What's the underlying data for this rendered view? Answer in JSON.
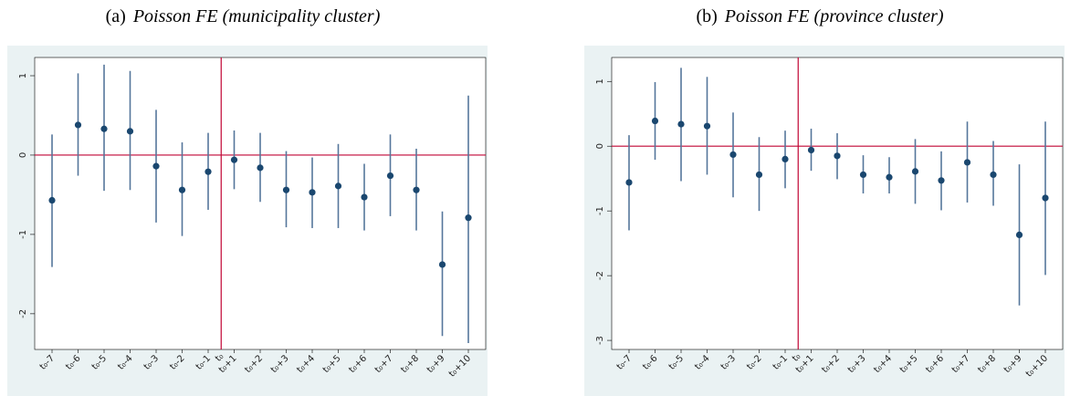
{
  "chart_data": [
    {
      "type": "errorbar",
      "label": "(a)",
      "title": "Poisson FE (municipality cluster)",
      "categories": [
        "t₀-7",
        "t₀-6",
        "t₀-5",
        "t₀-4",
        "t₀-3",
        "t₀-2",
        "t₀-1",
        "t₀+1",
        "t₀+2",
        "t₀+3",
        "t₀+4",
        "t₀+5",
        "t₀+6",
        "t₀+7",
        "t₀+8",
        "t₀+9",
        "t₀+10"
      ],
      "values": [
        -0.57,
        0.38,
        0.33,
        0.3,
        -0.14,
        -0.44,
        -0.21,
        -0.06,
        -0.16,
        -0.44,
        -0.47,
        -0.39,
        -0.53,
        -0.26,
        -0.44,
        -1.38,
        -0.79
      ],
      "lower": [
        -1.41,
        -0.26,
        -0.45,
        -0.44,
        -0.85,
        -1.02,
        -0.69,
        -0.43,
        -0.59,
        -0.91,
        -0.92,
        -0.92,
        -0.95,
        -0.77,
        -0.95,
        -2.28,
        -2.37
      ],
      "upper": [
        0.26,
        1.03,
        1.14,
        1.06,
        0.57,
        0.16,
        0.28,
        0.31,
        0.28,
        0.05,
        -0.03,
        0.14,
        -0.11,
        0.26,
        0.08,
        -0.71,
        0.75
      ],
      "point_color": "#1a476f",
      "bar_color": "#55769b",
      "ref_color": "#c10534",
      "hline": 0,
      "vline_label": "t₀",
      "ylim": [
        -2.45,
        1.23
      ],
      "yticks": [
        -2,
        -1,
        0,
        1
      ]
    },
    {
      "type": "errorbar",
      "label": "(b)",
      "title": "Poisson FE (province cluster)",
      "categories": [
        "t₀-7",
        "t₀-6",
        "t₀-5",
        "t₀-4",
        "t₀-3",
        "t₀-2",
        "t₀-1",
        "t₀+1",
        "t₀+2",
        "t₀+3",
        "t₀+4",
        "t₀+5",
        "t₀+6",
        "t₀+7",
        "t₀+8",
        "t₀+9",
        "t₀+10"
      ],
      "values": [
        -0.56,
        0.39,
        0.34,
        0.31,
        -0.13,
        -0.44,
        -0.2,
        -0.06,
        -0.15,
        -0.44,
        -0.48,
        -0.39,
        -0.53,
        -0.25,
        -0.44,
        -1.37,
        -0.8
      ],
      "lower": [
        -1.3,
        -0.21,
        -0.54,
        -0.44,
        -0.79,
        -1.0,
        -0.65,
        -0.38,
        -0.51,
        -0.73,
        -0.73,
        -0.89,
        -0.99,
        -0.87,
        -0.92,
        -2.46,
        -1.99
      ],
      "upper": [
        0.17,
        0.99,
        1.21,
        1.07,
        0.52,
        0.14,
        0.24,
        0.27,
        0.2,
        -0.14,
        -0.17,
        0.11,
        -0.08,
        0.38,
        0.08,
        -0.28,
        0.38
      ],
      "point_color": "#1a476f",
      "bar_color": "#55769b",
      "ref_color": "#c10534",
      "hline": 0,
      "vline_label": "t₀",
      "ylim": [
        -3.14,
        1.37
      ],
      "yticks": [
        -3,
        -2,
        -1,
        0,
        1
      ]
    }
  ]
}
